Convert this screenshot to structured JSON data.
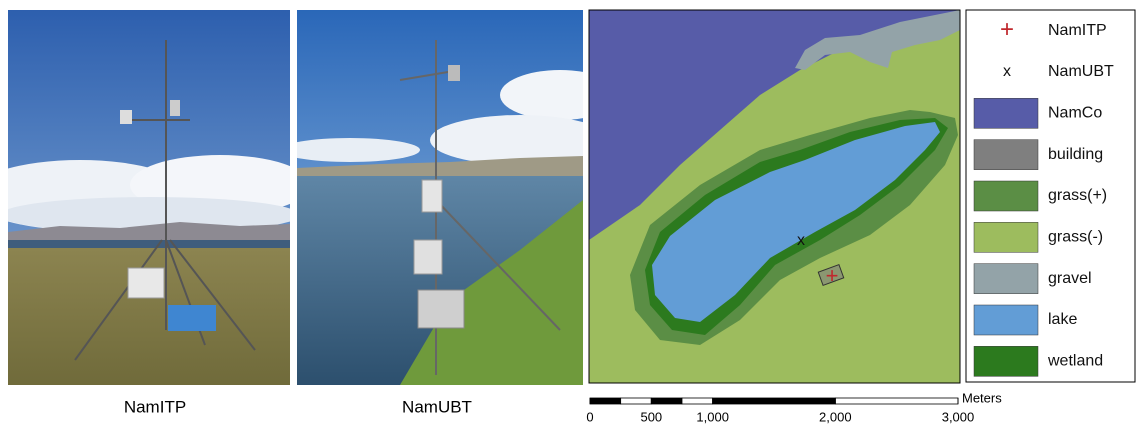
{
  "photos": [
    {
      "caption": "NamITP"
    },
    {
      "caption": "NamUBT"
    }
  ],
  "map": {
    "markers": [
      {
        "symbol": "x",
        "color": "#111111"
      },
      {
        "symbol": "+",
        "color": "#c0282d"
      }
    ],
    "legend": [
      {
        "symbol": "+",
        "label": "NamITP",
        "color": "#c0282d"
      },
      {
        "symbol": "x",
        "label": "NamUBT",
        "color": "#111111"
      },
      {
        "label": "NamCo",
        "color": "#575ca8"
      },
      {
        "label": "building",
        "color": "#7f7f7f"
      },
      {
        "label": "grass(+)",
        "color": "#5b8e45"
      },
      {
        "label": "grass(-)",
        "color": "#9dbc5e"
      },
      {
        "label": "gravel",
        "color": "#93a3a8"
      },
      {
        "label": "lake",
        "color": "#629dd6"
      },
      {
        "label": "wetland",
        "color": "#2c7a1e"
      }
    ],
    "scale_bar": {
      "unit": "Meters",
      "ticks": [
        0,
        500,
        {
          "value": 1000,
          "label": "1,000"
        },
        {
          "value": 2000,
          "label": "2,000"
        },
        {
          "value": 3000,
          "label": "3,000"
        }
      ]
    }
  }
}
